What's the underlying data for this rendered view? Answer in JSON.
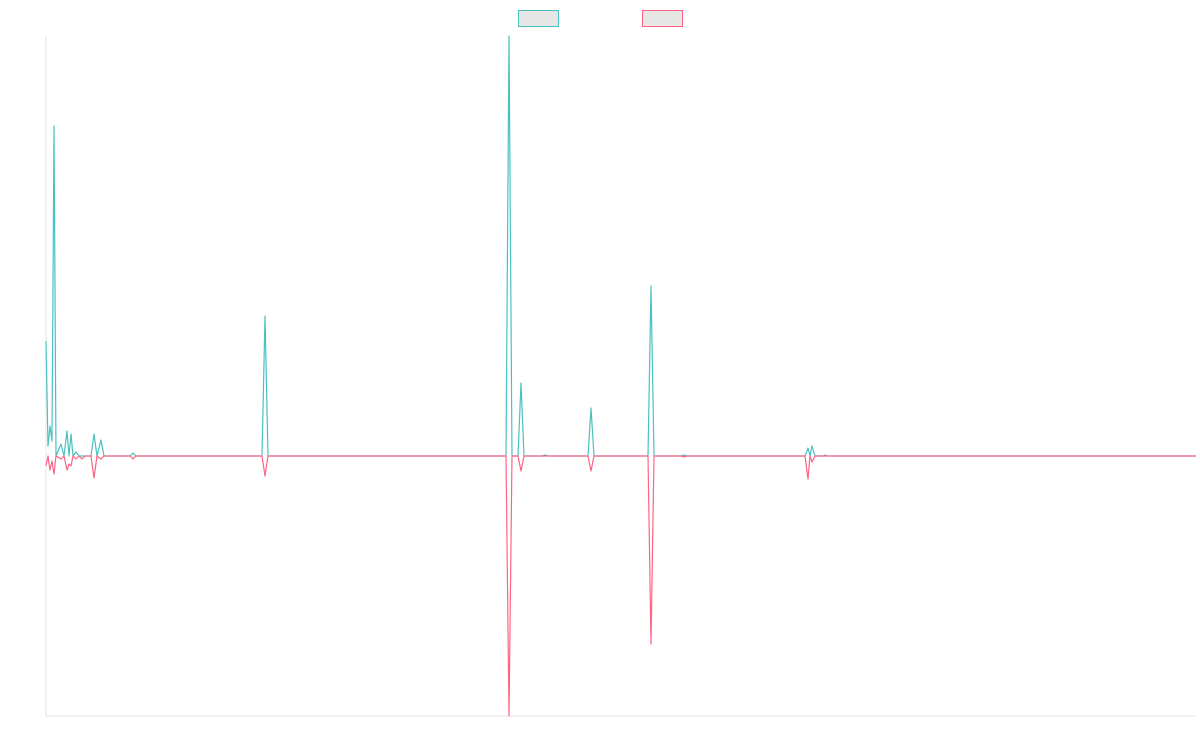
{
  "chart_data": {
    "type": "line",
    "title": "",
    "xlabel": "",
    "ylabel": "",
    "grid": false,
    "legend": "top-center",
    "x_range": [
      0,
      1150
    ],
    "ylim": [
      -260,
      420
    ],
    "baseline": 0,
    "series": [
      {
        "name": "",
        "color": "#4bc0c0",
        "fill": "#e6e6e6",
        "points": [
          [
            0,
            115
          ],
          [
            2,
            10
          ],
          [
            4,
            30
          ],
          [
            6,
            15
          ],
          [
            8,
            330
          ],
          [
            10,
            0
          ],
          [
            15,
            12
          ],
          [
            18,
            0
          ],
          [
            21,
            25
          ],
          [
            23,
            0
          ],
          [
            25,
            22
          ],
          [
            27,
            0
          ],
          [
            30,
            4
          ],
          [
            33,
            0
          ],
          [
            36,
            0
          ],
          [
            39,
            0
          ],
          [
            42,
            0
          ],
          [
            45,
            0
          ],
          [
            48,
            22
          ],
          [
            51,
            0
          ],
          [
            55,
            16
          ],
          [
            58,
            0
          ],
          [
            84,
            0
          ],
          [
            87,
            3
          ],
          [
            90,
            0
          ],
          [
            216,
            0
          ],
          [
            219,
            140
          ],
          [
            222,
            0
          ],
          [
            460,
            0
          ],
          [
            463,
            420
          ],
          [
            466,
            0
          ],
          [
            472,
            0
          ],
          [
            475,
            73
          ],
          [
            478,
            0
          ],
          [
            496,
            0
          ],
          [
            499,
            1
          ],
          [
            502,
            0
          ],
          [
            542,
            0
          ],
          [
            545,
            48
          ],
          [
            548,
            0
          ],
          [
            602,
            0
          ],
          [
            605,
            170
          ],
          [
            608,
            0
          ],
          [
            635,
            0
          ],
          [
            638,
            1
          ],
          [
            641,
            0
          ],
          [
            759,
            0
          ],
          [
            762,
            8
          ],
          [
            764,
            0
          ],
          [
            766,
            10
          ],
          [
            769,
            0
          ],
          [
            777,
            0
          ],
          [
            779,
            1
          ],
          [
            781,
            0
          ],
          [
            1150,
            0
          ]
        ]
      },
      {
        "name": "",
        "color": "#ff6384",
        "fill": "#e6e6e6",
        "points": [
          [
            0,
            -10
          ],
          [
            2,
            0
          ],
          [
            4,
            -14
          ],
          [
            6,
            -5
          ],
          [
            8,
            -18
          ],
          [
            10,
            0
          ],
          [
            15,
            -3
          ],
          [
            18,
            0
          ],
          [
            21,
            -14
          ],
          [
            23,
            -8
          ],
          [
            25,
            -10
          ],
          [
            27,
            0
          ],
          [
            30,
            -3
          ],
          [
            33,
            0
          ],
          [
            36,
            -3
          ],
          [
            39,
            0
          ],
          [
            45,
            0
          ],
          [
            48,
            -22
          ],
          [
            51,
            0
          ],
          [
            55,
            -3
          ],
          [
            58,
            0
          ],
          [
            84,
            0
          ],
          [
            87,
            -3
          ],
          [
            90,
            0
          ],
          [
            216,
            0
          ],
          [
            219,
            -20
          ],
          [
            222,
            0
          ],
          [
            460,
            0
          ],
          [
            463,
            -260
          ],
          [
            466,
            0
          ],
          [
            472,
            0
          ],
          [
            475,
            -15
          ],
          [
            478,
            0
          ],
          [
            542,
            0
          ],
          [
            545,
            -15
          ],
          [
            548,
            0
          ],
          [
            602,
            0
          ],
          [
            605,
            -188
          ],
          [
            608,
            0
          ],
          [
            635,
            0
          ],
          [
            638,
            -1
          ],
          [
            641,
            0
          ],
          [
            759,
            0
          ],
          [
            762,
            -23
          ],
          [
            764,
            0
          ],
          [
            766,
            -6
          ],
          [
            769,
            0
          ],
          [
            1150,
            0
          ]
        ]
      }
    ]
  }
}
